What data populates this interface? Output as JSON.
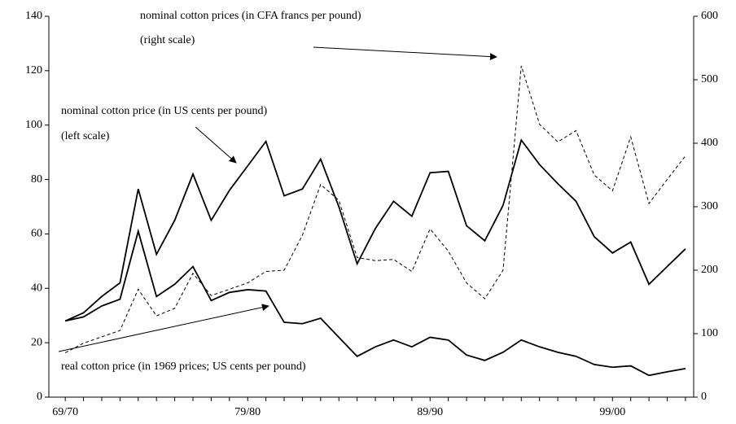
{
  "chart_data": {
    "type": "line",
    "categories": [
      "69/70",
      null,
      null,
      null,
      null,
      null,
      null,
      null,
      null,
      null,
      "79/80",
      null,
      null,
      null,
      null,
      null,
      null,
      null,
      null,
      null,
      "89/90",
      null,
      null,
      null,
      null,
      null,
      null,
      null,
      null,
      null,
      "99/00",
      null,
      null,
      null,
      null
    ],
    "series": [
      {
        "name": "nominal cotton price (in US cents per pound)",
        "color": "#000000",
        "dashed": false,
        "values": [
          28,
          31,
          37,
          42,
          76.5,
          52.5,
          65,
          82,
          65,
          76,
          85,
          94,
          74,
          76.5,
          87.5,
          70,
          49,
          62,
          72,
          66.5,
          82.5,
          83,
          63,
          57.5,
          70.5,
          94.5,
          85.5,
          78.5,
          72,
          59,
          53,
          57,
          41.5,
          48,
          54.5
        ]
      },
      {
        "name": "real cotton price (in 1969 prices; US cents per pound)",
        "color": "#000000",
        "dashed": false,
        "values": [
          28,
          29.5,
          33.5,
          36,
          61,
          37,
          41.5,
          48,
          35.5,
          38.5,
          39.5,
          39,
          27.5,
          27,
          29,
          22,
          15,
          18.5,
          21,
          18.5,
          22,
          21,
          15.5,
          13.5,
          16.5,
          21,
          18.5,
          16.5,
          15,
          12,
          11,
          11.5,
          8,
          9.3,
          10.5
        ]
      },
      {
        "name": "nominal cotton prices (in CFA francs per pound)",
        "color": "#000000",
        "dashed": true,
        "axis": "y2",
        "values": [
          70,
          85,
          95,
          105,
          170,
          128,
          140,
          195,
          160,
          170,
          180,
          198,
          200,
          255,
          335,
          310,
          220,
          215,
          217,
          198,
          265,
          230,
          180,
          155,
          200,
          522,
          430,
          402,
          420,
          350,
          325,
          410,
          305,
          343,
          380
        ]
      }
    ],
    "annotations": [
      "nominal cotton prices (in CFA francs per pound)",
      "(right scale)",
      "nominal cotton price (in US cents per pound)",
      "(left scale)",
      "real cotton price (in 1969 prices; US cents per pound)"
    ],
    "ylim": [
      0,
      140
    ],
    "yticks": [
      0,
      20,
      40,
      60,
      80,
      100,
      120,
      140
    ],
    "y2lim": [
      0,
      600
    ],
    "y2ticks": [
      0,
      100,
      200,
      300,
      400,
      500,
      600
    ],
    "grid": false
  }
}
